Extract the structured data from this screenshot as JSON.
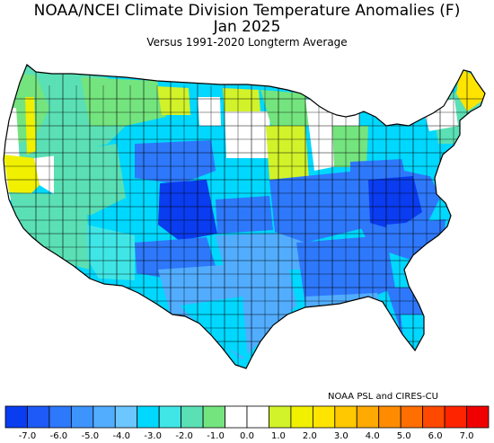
{
  "header": {
    "title_line1": "NOAA/NCEI Climate Division Temperature Anomalies (F)",
    "title_line2": "Jan 2025",
    "subtitle": "Versus 1991-2020 Longterm Average"
  },
  "credit": "NOAA PSL and CIRES-CU",
  "legend": {
    "labels": [
      "-7.0",
      "-6.0",
      "-5.0",
      "-4.0",
      "-3.0",
      "-2.0",
      "-1.0",
      "0.0",
      "1.0",
      "2.0",
      "3.0",
      "4.0",
      "5.0",
      "6.0",
      "7.0"
    ],
    "colors": [
      "#0a3cf0",
      "#1e5af5",
      "#2e78fb",
      "#3e94fd",
      "#52adff",
      "#6cc6ff",
      "#00d8ff",
      "#40e6e6",
      "#5ae0b4",
      "#74e47e",
      "#ffffff",
      "#ffffff",
      "#d2f22a",
      "#f0f000",
      "#ffe400",
      "#ffc800",
      "#ffaa00",
      "#ff8c00",
      "#ff6e00",
      "#ff4800",
      "#ff2400",
      "#f00000"
    ]
  },
  "map": {
    "colors": {
      "deep_blue": "#0a3cf0",
      "blue": "#2e78fb",
      "mid_blue": "#52adff",
      "light_blue": "#00d8ff",
      "cyan": "#40e6e6",
      "teal": "#5ae0b4",
      "green": "#74e47e",
      "lime": "#d2f22a",
      "yellow": "#f0f000",
      "gold": "#ffe400",
      "white": "#ffffff"
    }
  }
}
